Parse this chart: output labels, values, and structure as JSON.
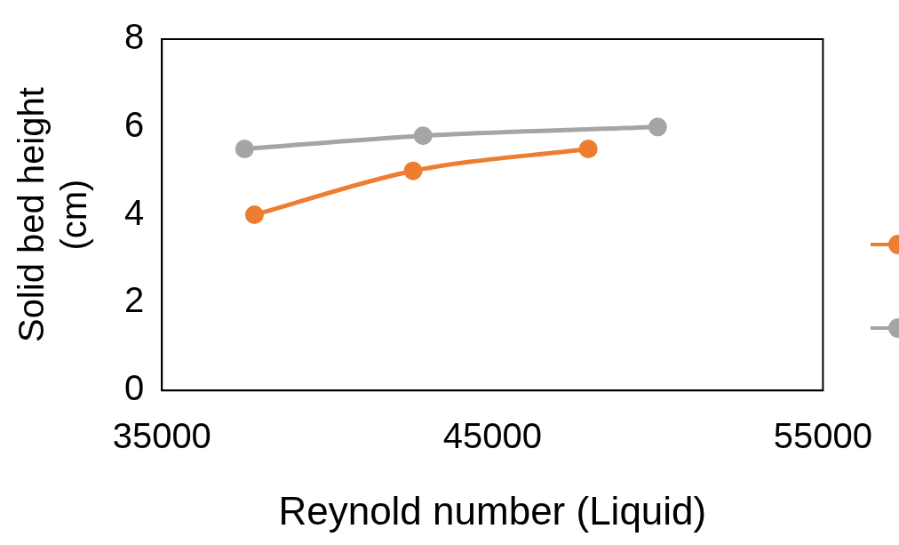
{
  "chart_data": {
    "type": "line",
    "xlabel": "Reynold number (Liquid)",
    "ylabel": "Solid bed height (cm)",
    "xlim": [
      35000,
      55000
    ],
    "xticks": [
      35000,
      45000,
      55000
    ],
    "ylim": [
      0,
      8
    ],
    "yticks": [
      0,
      2,
      4,
      6,
      8
    ],
    "grid": false,
    "marker": "circle",
    "line_style": "solid",
    "series": [
      {
        "color": "#ed7d31",
        "x": [
          37800,
          42600,
          47900
        ],
        "values": [
          4.0,
          5.0,
          5.5
        ]
      },
      {
        "color": "#a5a5a5",
        "x": [
          37500,
          42900,
          50000
        ],
        "values": [
          5.5,
          5.8,
          6.0
        ]
      }
    ]
  }
}
